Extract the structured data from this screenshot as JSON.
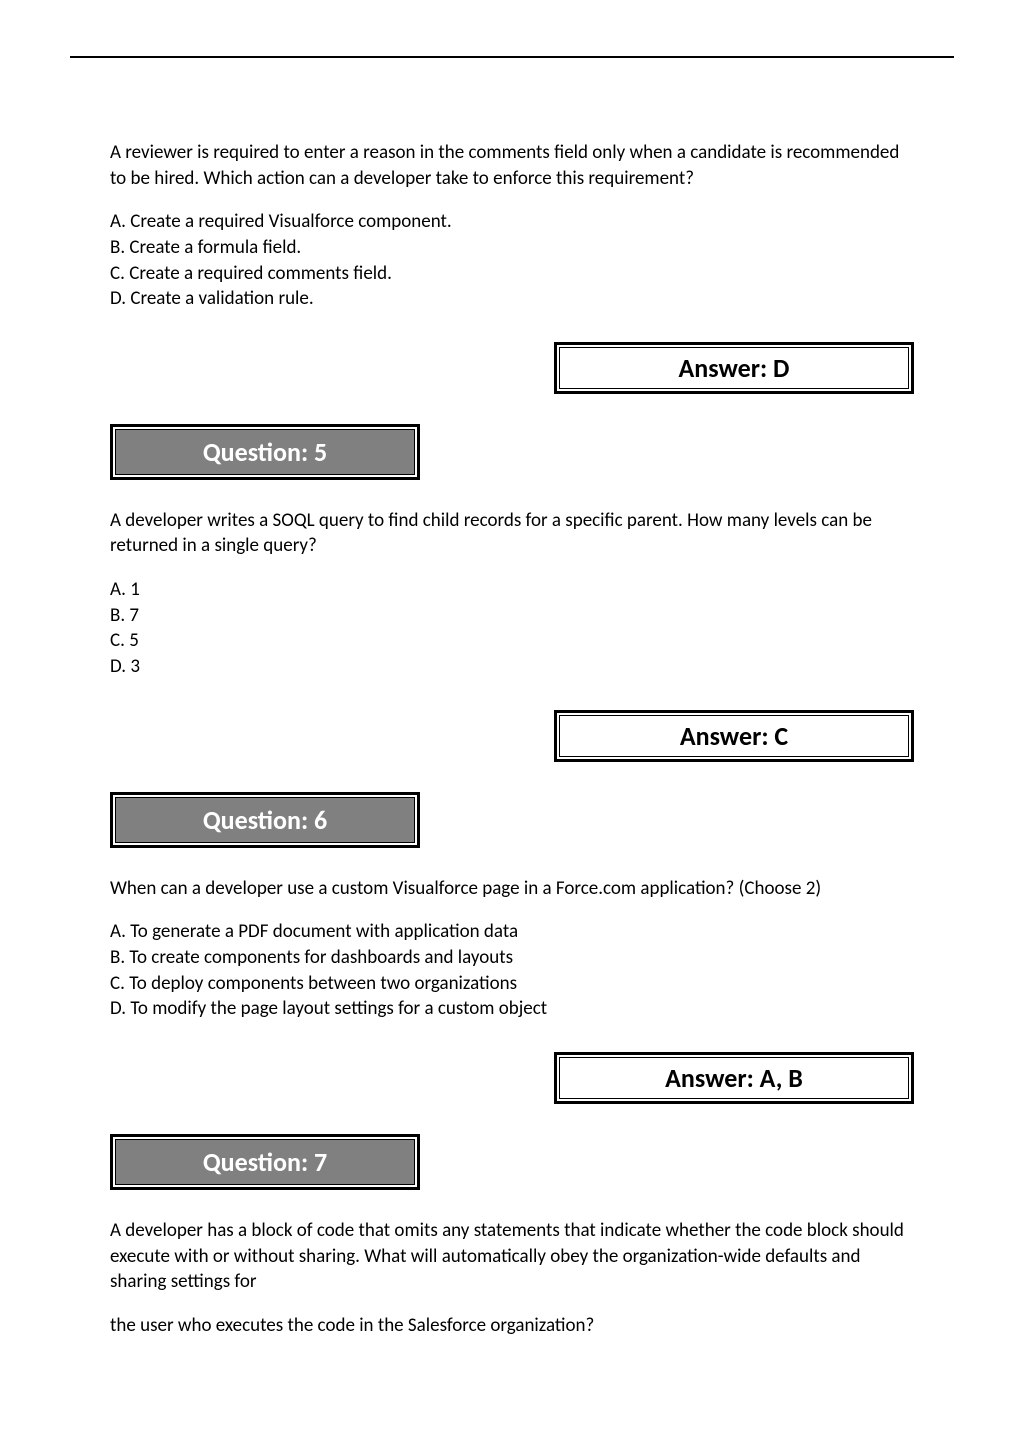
{
  "q4": {
    "text": "A reviewer is required to enter a reason in the comments field only when a candidate is recommended to be hired. Which action can a developer take to enforce this requirement?",
    "options": [
      "A. Create a required Visualforce component.",
      "B. Create a formula field.",
      "C. Create a required comments field.",
      "D. Create a validation rule."
    ],
    "answer": "Answer: D"
  },
  "q5": {
    "header": "Question: 5",
    "text": "A developer writes a SOQL query to find child records for a specific parent. How many levels can be returned in a single query?",
    "options": [
      "A. 1",
      "B. 7",
      "C. 5",
      "D. 3"
    ],
    "answer": "Answer: C"
  },
  "q6": {
    "header": "Question: 6",
    "text": "When can a developer use a custom Visualforce page in a Force.com application? (Choose 2)",
    "options": [
      "A. To generate a PDF document with application data",
      "B. To create components for dashboards and layouts",
      "C. To deploy components between two organizations",
      "D. To modify the page layout settings for a custom object"
    ],
    "answer": "Answer: A, B"
  },
  "q7": {
    "header": "Question: 7",
    "text1": "A developer has a block of code that omits any statements that indicate whether the code block should execute with or without sharing. What will automatically obey the organization-wide defaults and sharing settings for",
    "text2": "the user who executes the code in the Salesforce organization?"
  }
}
